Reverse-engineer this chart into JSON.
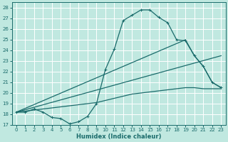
{
  "background_color": "#c0e8e0",
  "grid_color": "#ffffff",
  "line_color": "#1a6b6b",
  "xlabel": "Humidex (Indice chaleur)",
  "xlim": [
    -0.5,
    23.5
  ],
  "ylim": [
    17,
    28.5
  ],
  "yticks": [
    17,
    18,
    19,
    20,
    21,
    22,
    23,
    24,
    25,
    26,
    27,
    28
  ],
  "xticks": [
    0,
    1,
    2,
    3,
    4,
    5,
    6,
    7,
    8,
    9,
    10,
    11,
    12,
    13,
    14,
    15,
    16,
    17,
    18,
    19,
    20,
    21,
    22,
    23
  ],
  "line1_x": [
    0,
    1,
    2,
    3,
    4,
    5,
    6,
    7,
    8,
    9,
    10,
    11,
    12,
    13,
    14,
    15,
    16,
    17,
    18,
    19,
    20,
    21,
    22,
    23
  ],
  "line1_y": [
    18.2,
    18.2,
    18.5,
    18.2,
    17.7,
    17.6,
    17.1,
    17.3,
    17.8,
    19.0,
    22.2,
    24.1,
    26.8,
    27.3,
    27.8,
    27.8,
    27.1,
    26.6,
    25.0,
    24.9,
    23.5,
    22.5,
    21.0,
    20.5
  ],
  "line2_x": [
    0,
    19,
    20,
    21,
    22,
    23
  ],
  "line2_y": [
    18.2,
    25.0,
    23.5,
    22.5,
    21.0,
    20.5
  ],
  "line3_x": [
    0,
    23
  ],
  "line3_y": [
    18.2,
    23.5
  ],
  "line4_x": [
    0,
    1,
    2,
    3,
    4,
    5,
    6,
    7,
    8,
    9,
    10,
    11,
    12,
    13,
    14,
    15,
    16,
    17,
    18,
    19,
    20,
    21,
    22,
    23
  ],
  "line4_y": [
    18.2,
    18.3,
    18.4,
    18.5,
    18.6,
    18.7,
    18.8,
    18.9,
    19.0,
    19.1,
    19.3,
    19.5,
    19.7,
    19.9,
    20.0,
    20.1,
    20.2,
    20.3,
    20.4,
    20.5,
    20.5,
    20.4,
    20.4,
    20.4
  ]
}
